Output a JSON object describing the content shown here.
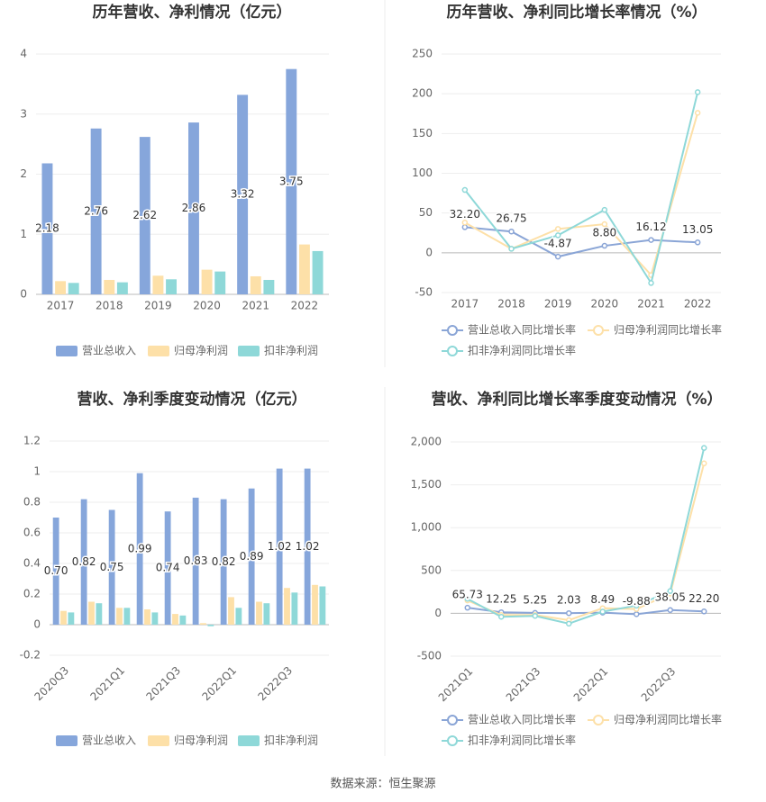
{
  "chart_data": [
    {
      "type": "bar",
      "title": "历年营收、净利情况（亿元）",
      "categories": [
        "2017",
        "2018",
        "2019",
        "2020",
        "2021",
        "2022"
      ],
      "series": [
        {
          "name": "营业总收入",
          "color": "#86a6db",
          "values": [
            2.18,
            2.76,
            2.62,
            2.86,
            3.32,
            3.75
          ],
          "value_labels": [
            "2.18",
            "2.76",
            "2.62",
            "2.86",
            "3.32",
            "3.75"
          ]
        },
        {
          "name": "归母净利润",
          "color": "#fde0a8",
          "values": [
            0.22,
            0.24,
            0.31,
            0.41,
            0.3,
            0.83
          ]
        },
        {
          "name": "扣非净利润",
          "color": "#8ed8d8",
          "values": [
            0.19,
            0.2,
            0.25,
            0.38,
            0.24,
            0.72
          ]
        }
      ],
      "ylim": [
        0,
        4
      ],
      "yticks": [
        0,
        1,
        2,
        3,
        4
      ],
      "grid": true
    },
    {
      "type": "line",
      "title": "历年营收、净利同比增长率情况（%）",
      "categories": [
        "2017",
        "2018",
        "2019",
        "2020",
        "2021",
        "2022"
      ],
      "series": [
        {
          "name": "营业总收入同比增长率",
          "color": "#8aa5d6",
          "values": [
            32.2,
            26.75,
            -4.87,
            8.8,
            16.12,
            13.05
          ],
          "value_labels": [
            "32.20",
            "26.75",
            "-4.87",
            "8.80",
            "16.12",
            "13.05"
          ]
        },
        {
          "name": "归母净利润同比增长率",
          "color": "#fde0a8",
          "values": [
            38,
            5,
            30,
            36,
            -28,
            176
          ]
        },
        {
          "name": "扣非净利润同比增长率",
          "color": "#8ed8d8",
          "values": [
            79,
            5,
            22,
            54,
            -38,
            202
          ]
        }
      ],
      "ylim": [
        -50,
        250
      ],
      "yticks": [
        -50,
        0,
        50,
        100,
        150,
        200,
        250
      ],
      "grid": true
    },
    {
      "type": "bar",
      "title": "营收、净利季度变动情况（亿元）",
      "categories": [
        "2020Q3",
        null,
        "2021Q1",
        null,
        "2021Q3",
        null,
        "2022Q1",
        null,
        "2022Q3",
        null
      ],
      "series": [
        {
          "name": "营业总收入",
          "color": "#86a6db",
          "values": [
            0.7,
            0.82,
            0.75,
            0.99,
            0.74,
            0.83,
            0.82,
            0.89,
            1.02,
            1.02
          ],
          "value_labels": [
            "0.70",
            "0.82",
            "0.75",
            "0.99",
            "0.74",
            "0.83",
            "0.82",
            "0.89",
            "1.02",
            "1.02"
          ]
        },
        {
          "name": "归母净利润",
          "color": "#fde0a8",
          "values": [
            0.09,
            0.15,
            0.11,
            0.1,
            0.07,
            0.01,
            0.18,
            0.15,
            0.24,
            0.26
          ]
        },
        {
          "name": "扣非净利润",
          "color": "#8ed8d8",
          "values": [
            0.08,
            0.14,
            0.11,
            0.08,
            0.06,
            -0.01,
            0.11,
            0.14,
            0.21,
            0.25
          ]
        }
      ],
      "ylim": [
        -0.2,
        1.2
      ],
      "yticks": [
        -0.2,
        0,
        0.2,
        0.4,
        0.6,
        0.8,
        1,
        1.2
      ],
      "grid": true
    },
    {
      "type": "line",
      "title": "营收、净利同比增长率季度变动情况（%）",
      "categories": [
        "2021Q1",
        null,
        "2021Q3",
        null,
        "2022Q1",
        null,
        "2022Q3",
        null
      ],
      "series": [
        {
          "name": "营业总收入同比增长率",
          "color": "#8aa5d6",
          "values": [
            65.73,
            12.25,
            5.25,
            2.03,
            8.49,
            -9.88,
            38.05,
            22.2
          ],
          "value_labels": [
            "65.73",
            "12.25",
            "5.25",
            "2.03",
            "8.49",
            "-9.88",
            "38.05",
            "22.20"
          ]
        },
        {
          "name": "归母净利润同比增长率",
          "color": "#fde0a8",
          "values": [
            150,
            -20,
            -20,
            -80,
            60,
            50,
            230,
            1750
          ]
        },
        {
          "name": "扣非净利润同比增长率",
          "color": "#8ed8d8",
          "values": [
            170,
            -40,
            -30,
            -120,
            20,
            90,
            260,
            1930
          ]
        }
      ],
      "ylim": [
        -500,
        2000
      ],
      "yticks": [
        -500,
        0,
        500,
        {
          "value": 1000,
          "label": "1,000"
        },
        {
          "value": 1500,
          "label": "1,500"
        },
        {
          "value": 2000,
          "label": "2,000"
        }
      ],
      "grid": true
    }
  ],
  "source": "数据来源：恒生聚源"
}
